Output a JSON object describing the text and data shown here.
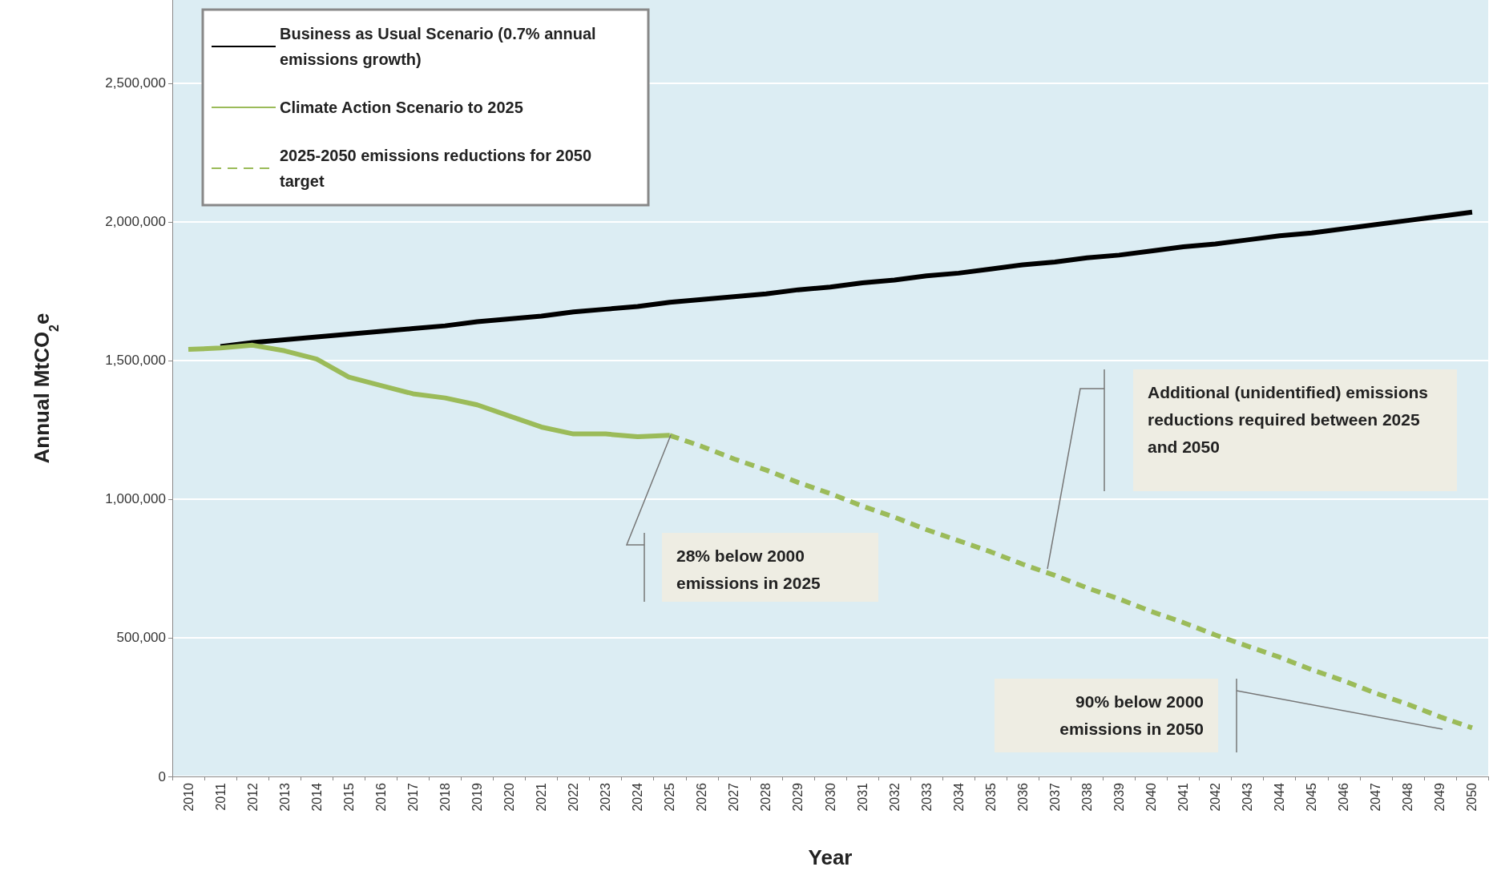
{
  "chart_data": {
    "type": "line",
    "xlabel": "Year",
    "ylabel": "Annual MtCO$_{2}$e",
    "categories": [
      "2010",
      "2011",
      "2012",
      "2013",
      "2014",
      "2015",
      "2016",
      "2017",
      "2018",
      "2019",
      "2020",
      "2021",
      "2022",
      "2023",
      "2024",
      "2025",
      "2026",
      "2027",
      "2028",
      "2029",
      "2030",
      "2031",
      "2032",
      "2033",
      "2034",
      "2035",
      "2036",
      "2037",
      "2038",
      "2039",
      "2040",
      "2041",
      "2042",
      "2043",
      "2044",
      "2045",
      "2046",
      "2047",
      "2048",
      "2049",
      "2050"
    ],
    "series": [
      {
        "name": "Business as Usual Scenario (0.7% annual emissions growth)",
        "color": "#000000",
        "line_style": "solid",
        "values": [
          null,
          1550000,
          1565000,
          1575000,
          1585000,
          1595000,
          1605000,
          1615000,
          1625000,
          1640000,
          1650000,
          1660000,
          1675000,
          1685000,
          1695000,
          1710000,
          1720000,
          1730000,
          1740000,
          1755000,
          1765000,
          1780000,
          1790000,
          1805000,
          1815000,
          1830000,
          1845000,
          1855000,
          1870000,
          1880000,
          1895000,
          1910000,
          1920000,
          1935000,
          1950000,
          1960000,
          1975000,
          1990000,
          2005000,
          2020000,
          2035000
        ]
      },
      {
        "name": "Climate Action Scenario to 2025",
        "color": "#9bbb59",
        "line_style": "solid",
        "values": [
          1540000,
          1545000,
          1555000,
          1535000,
          1505000,
          1440000,
          1410000,
          1380000,
          1365000,
          1340000,
          1300000,
          1260000,
          1235000,
          1235000,
          1225000,
          1230000,
          null,
          null,
          null,
          null,
          null,
          null,
          null,
          null,
          null,
          null,
          null,
          null,
          null,
          null,
          null,
          null,
          null,
          null,
          null,
          null,
          null,
          null,
          null,
          null,
          null
        ]
      },
      {
        "name": "2025-2050 emissions reductions for 2050 target",
        "color": "#9bbb59",
        "line_style": "dashed",
        "values": [
          null,
          null,
          null,
          null,
          null,
          null,
          null,
          null,
          null,
          null,
          null,
          null,
          null,
          null,
          null,
          1230000,
          1190000,
          1145000,
          1105000,
          1060000,
          1020000,
          975000,
          935000,
          890000,
          850000,
          810000,
          765000,
          725000,
          680000,
          640000,
          595000,
          555000,
          510000,
          470000,
          430000,
          385000,
          345000,
          300000,
          260000,
          215000,
          175000
        ]
      }
    ],
    "ylim": [
      0,
      2800000
    ],
    "yticks": [
      0,
      {
        "value": 500000,
        "label": "500,000"
      },
      {
        "value": 1000000,
        "label": "1,000,000"
      },
      {
        "value": 1500000,
        "label": "1,500,000"
      },
      {
        "value": 2000000,
        "label": "2,000,000"
      },
      {
        "value": 2500000,
        "label": "2,500,000"
      }
    ],
    "grid": "y",
    "legend": "top left",
    "marker": "none",
    "annotations": [
      "28% below  2000 emissions in 2025",
      "Additional  (unidentified) emissions reductions required between 2025 and 2050",
      "90% below 2000 emissions in 2050"
    ]
  }
}
